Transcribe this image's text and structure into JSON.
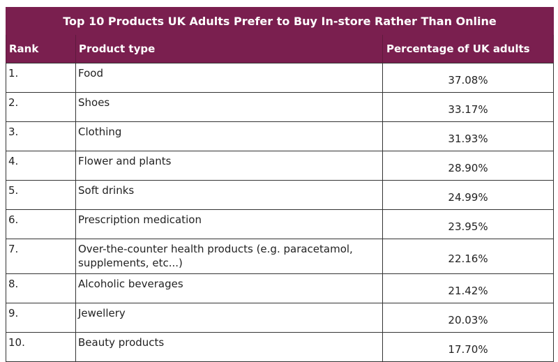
{
  "title": "Top 10 Products UK Adults Prefer to Buy In-store Rather Than Online",
  "columns": [
    "Rank",
    "Product type",
    "Percentage of UK adults"
  ],
  "rows": [
    {
      "rank": "1.",
      "product": "Food",
      "pct": "37.08%"
    },
    {
      "rank": "2.",
      "product": "Shoes",
      "pct": "33.17%"
    },
    {
      "rank": "3.",
      "product": "Clothing",
      "pct": "31.93%"
    },
    {
      "rank": "4.",
      "product": "Flower and plants",
      "pct": "28.90%"
    },
    {
      "rank": "5.",
      "product": "Soft drinks",
      "pct": "24.99%"
    },
    {
      "rank": "6.",
      "product": "Prescription medication",
      "pct": "23.95%"
    },
    {
      "rank": "7.",
      "product": "Over-the-counter health products (e.g. paracetamol, supplements, etc...)",
      "pct": "22.16%"
    },
    {
      "rank": "8.",
      "product": "Alcoholic beverages",
      "pct": "21.42%"
    },
    {
      "rank": "9.",
      "product": "Jewellery",
      "pct": "20.03%"
    },
    {
      "rank": "10.",
      "product": "Beauty products",
      "pct": "17.70%"
    }
  ],
  "colors": {
    "header_bg": "#7a1f4f",
    "header_text": "#ffffff",
    "border": "#333333"
  }
}
